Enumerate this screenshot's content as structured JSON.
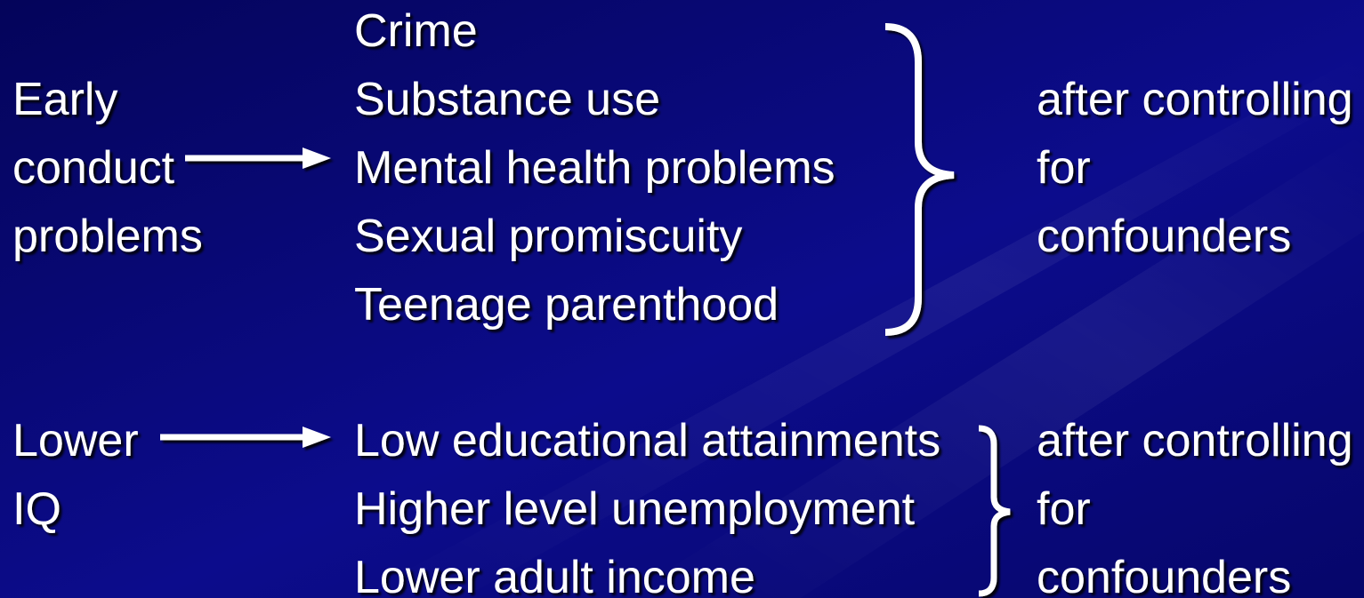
{
  "groups": [
    {
      "cause_lines": [
        "Early",
        "conduct",
        "problems"
      ],
      "outcomes": [
        "Crime",
        "Substance use",
        "Mental health problems",
        "Sexual promiscuity",
        "Teenage parenthood"
      ],
      "note_lines": [
        "after controlling",
        "for",
        "confounders"
      ]
    },
    {
      "cause_lines": [
        "Lower",
        "IQ"
      ],
      "outcomes": [
        "Low educational attainments",
        "Higher level unemployment",
        "Lower adult income"
      ],
      "note_lines": [
        "after controlling",
        "for",
        "confounders"
      ]
    }
  ]
}
